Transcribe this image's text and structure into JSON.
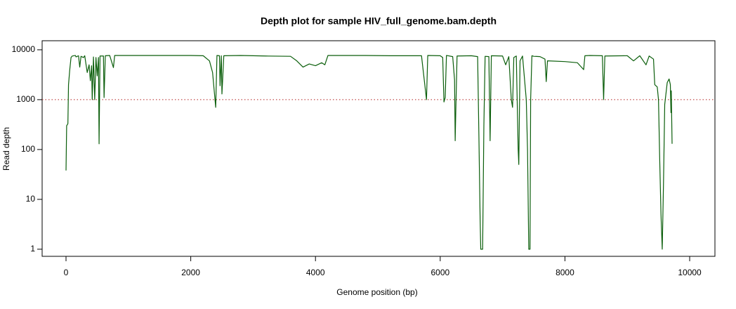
{
  "chart_data": {
    "type": "line",
    "title": "Depth plot for sample  HIV_full_genome.bam.depth",
    "x_label": "Genome position (bp)",
    "y_label": "Read depth",
    "y_log_scale": true,
    "xlim": [
      -383,
      10405
    ],
    "ylim": [
      0.72,
      15200
    ],
    "xticks": [
      0,
      2000,
      4000,
      6000,
      8000,
      10000
    ],
    "yticks": [
      1,
      10,
      100,
      1000,
      10000
    ],
    "hline": {
      "value": 1000,
      "color": "#b22222"
    },
    "x": [
      0,
      10,
      30,
      40,
      60,
      80,
      100,
      150,
      160,
      200,
      220,
      240,
      280,
      300,
      340,
      370,
      390,
      410,
      420,
      440,
      460,
      480,
      500,
      520,
      530,
      545,
      600,
      610,
      630,
      700,
      760,
      780,
      1000,
      1500,
      2000,
      2200,
      2300,
      2350,
      2400,
      2420,
      2460,
      2470,
      2490,
      2500,
      2530,
      2800,
      3200,
      3600,
      3700,
      3800,
      3900,
      4000,
      4100,
      4150,
      4200,
      4800,
      5200,
      5700,
      5780,
      5800,
      6000,
      6040,
      6060,
      6080,
      6100,
      6200,
      6230,
      6240,
      6250,
      6270,
      6500,
      6600,
      6620,
      6640,
      6650,
      6680,
      6700,
      6720,
      6780,
      6800,
      6820,
      7000,
      7050,
      7100,
      7140,
      7160,
      7180,
      7220,
      7250,
      7260,
      7280,
      7320,
      7380,
      7400,
      7420,
      7440,
      7450,
      7470,
      7500,
      7600,
      7680,
      7700,
      7720,
      8000,
      8200,
      8300,
      8320,
      8400,
      8600,
      8620,
      8640,
      9000,
      9100,
      9200,
      9300,
      9350,
      9420,
      9440,
      9480,
      9500,
      9520,
      9540,
      9560,
      9580,
      9600,
      9640,
      9670,
      9690,
      9700,
      9705,
      9718
    ],
    "series": [
      {
        "name": "depth",
        "color": "#0b5e0b",
        "values": [
          38,
          300,
          330,
          2000,
          4000,
          7000,
          7500,
          7700,
          7200,
          7600,
          4500,
          7400,
          7000,
          7600,
          3500,
          5000,
          2400,
          4800,
          1000,
          7200,
          1000,
          7000,
          3000,
          7000,
          130,
          7500,
          7500,
          1100,
          7600,
          7700,
          4400,
          7700,
          7700,
          7700,
          7700,
          7600,
          6000,
          3500,
          700,
          7700,
          7600,
          1900,
          7600,
          1300,
          7600,
          7700,
          7500,
          7400,
          6000,
          4500,
          5200,
          4800,
          5500,
          5000,
          7700,
          7700,
          7600,
          7600,
          1000,
          7700,
          7600,
          7000,
          900,
          1100,
          7700,
          7300,
          2500,
          150,
          600,
          7500,
          7600,
          7300,
          200,
          4,
          1,
          1,
          300,
          7400,
          7300,
          150,
          7600,
          7500,
          5000,
          7300,
          1000,
          700,
          7000,
          7500,
          100,
          50,
          6000,
          7500,
          1000,
          100,
          1,
          1,
          1000,
          7600,
          7400,
          7300,
          6500,
          2300,
          6000,
          5800,
          5500,
          4000,
          7600,
          7700,
          7600,
          1000,
          7500,
          7600,
          6000,
          7600,
          5000,
          7500,
          6500,
          2000,
          1800,
          1000,
          60,
          5,
          1,
          20,
          800,
          2200,
          2600,
          2000,
          550,
          1500,
          130
        ]
      }
    ]
  }
}
